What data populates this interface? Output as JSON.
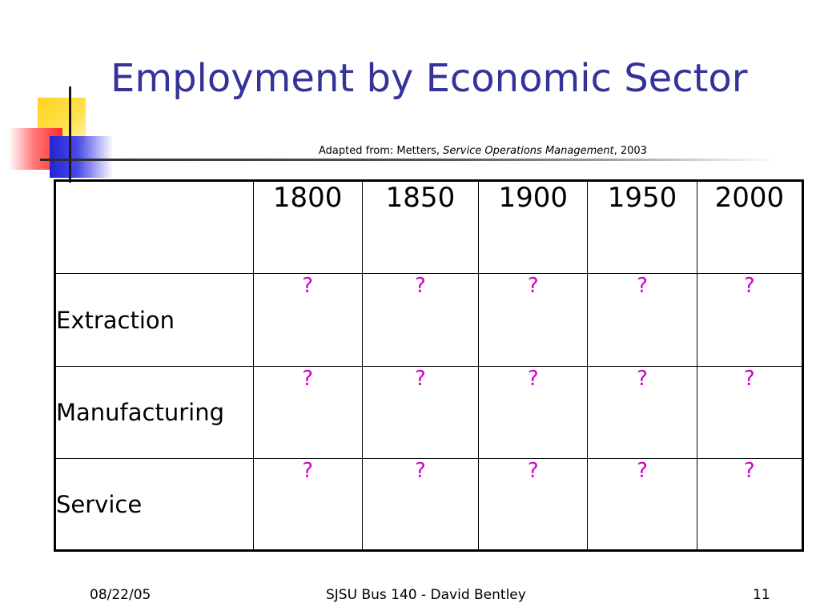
{
  "slide": {
    "title": "Employment by Economic Sector",
    "credit": {
      "prefix": "Adapted from: Metters, ",
      "book": "Service Operations Management",
      "suffix": ", 2003"
    },
    "table": {
      "header_blank": "",
      "years": [
        "1800",
        "1850",
        "1900",
        "1950",
        "2000"
      ],
      "rows": [
        {
          "label": "Extraction",
          "cells": [
            "?",
            "?",
            "?",
            "?",
            "?"
          ]
        },
        {
          "label": "Manufacturing",
          "cells": [
            "?",
            "?",
            "?",
            "?",
            "?"
          ]
        },
        {
          "label": "Service",
          "cells": [
            "?",
            "?",
            "?",
            "?",
            "?"
          ]
        }
      ]
    },
    "footer": {
      "date": "08/22/05",
      "center": "SJSU Bus 140 - David Bentley",
      "page": "11"
    },
    "colors": {
      "title": "#333399",
      "question_marks": "#cc00cc"
    }
  }
}
